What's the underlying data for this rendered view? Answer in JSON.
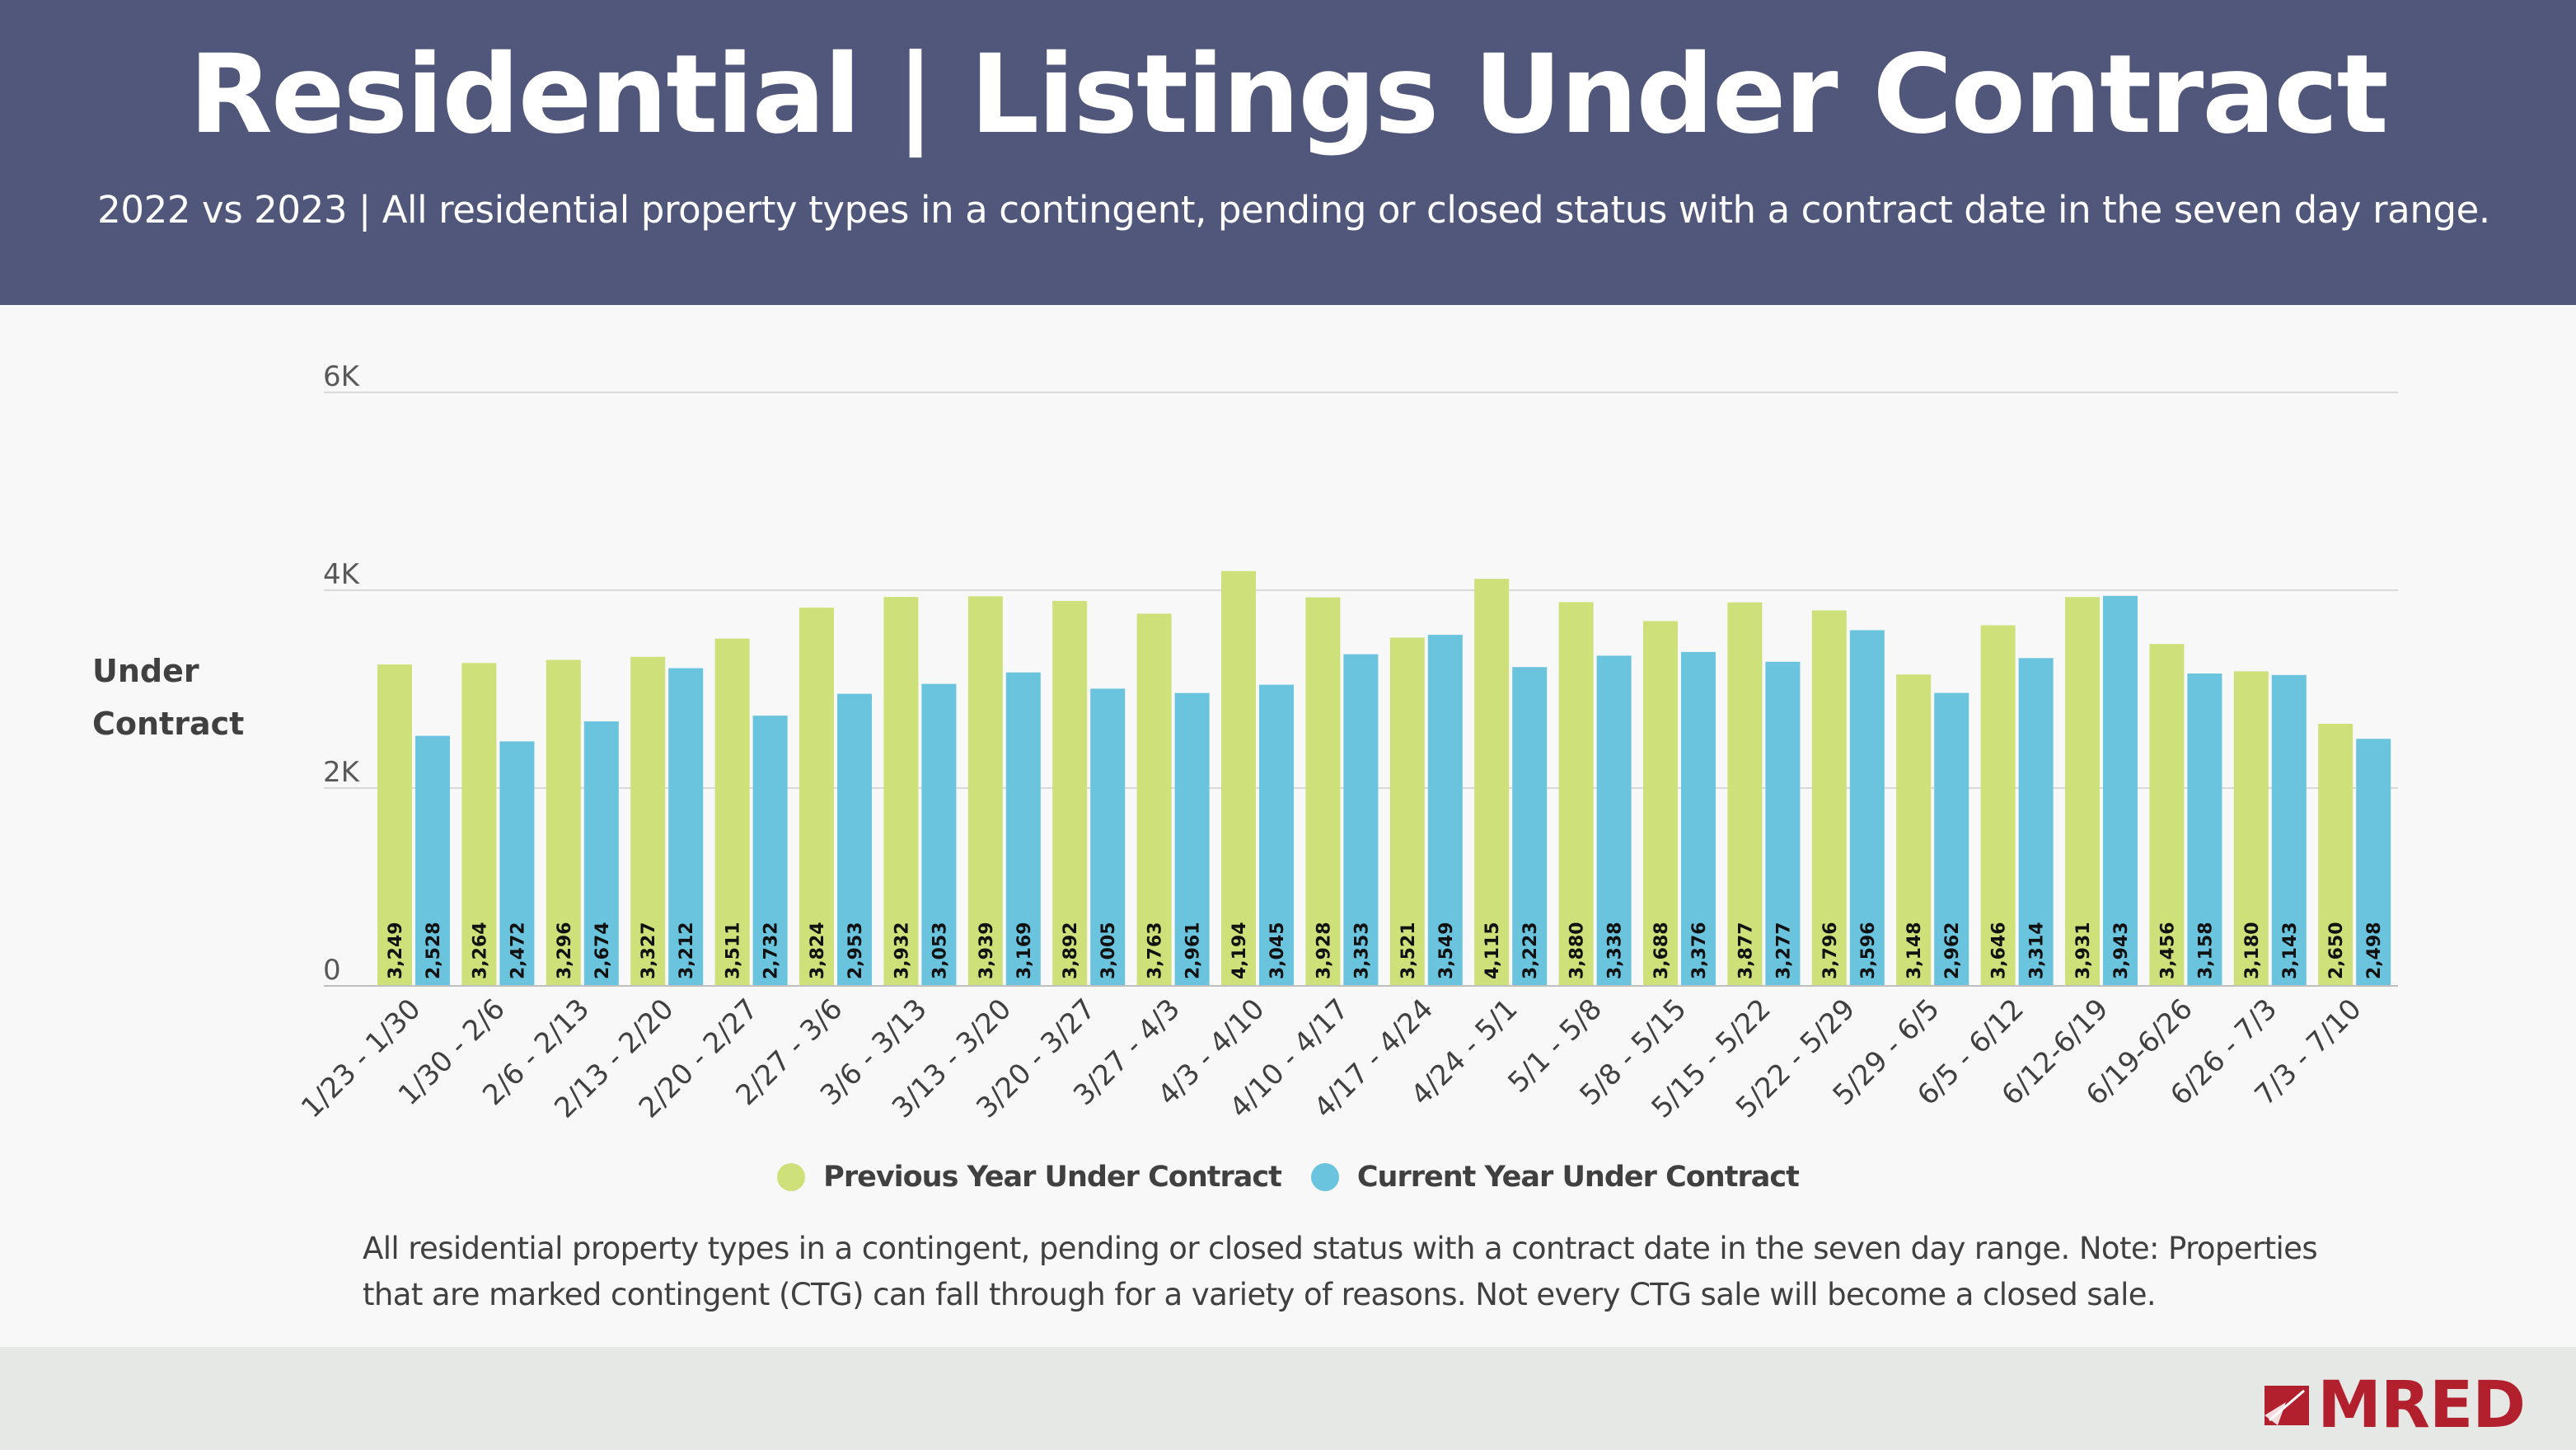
{
  "header": {
    "title": "Residential | Listings Under Contract",
    "subtitle": "2022 vs 2023 | All residential property types in a contingent, pending or closed status with a contract date in the seven day range."
  },
  "chart_data": {
    "type": "bar",
    "ylabel": "Under Contract",
    "ylim": [
      0,
      6000
    ],
    "yticks": [
      "0",
      "2K",
      "4K",
      "6K"
    ],
    "ytick_values": [
      0,
      2000,
      4000,
      6000
    ],
    "grid": true,
    "legend_position": "bottom",
    "categories": [
      "1/23 - 1/30",
      "1/30 - 2/6",
      "2/6 - 2/13",
      "2/13 - 2/20",
      "2/20 - 2/27",
      "2/27 - 3/6",
      "3/6 - 3/13",
      "3/13 - 3/20",
      "3/20 - 3/27",
      "3/27 - 4/3",
      "4/3 - 4/10",
      "4/10 - 4/17",
      "4/17 - 4/24",
      "4/24 - 5/1",
      "5/1 - 5/8",
      "5/8 - 5/15",
      "5/15 - 5/22",
      "5/22 - 5/29",
      "5/29 - 6/5",
      "6/5 - 6/12",
      "6/12-6/19",
      "6/19-6/26",
      "6/26 - 7/3",
      "7/3 - 7/10"
    ],
    "series": [
      {
        "name": "Previous Year Under Contract",
        "color": "#cde07a",
        "values": [
          3249,
          3264,
          3296,
          3327,
          3511,
          3824,
          3932,
          3939,
          3892,
          3763,
          4194,
          3928,
          3521,
          4115,
          3880,
          3688,
          3877,
          3796,
          3148,
          3646,
          3931,
          3456,
          3180,
          2650
        ]
      },
      {
        "name": "Current Year Under Contract",
        "color": "#6ac4de",
        "values": [
          2528,
          2472,
          2674,
          3212,
          2732,
          2953,
          3053,
          3169,
          3005,
          2961,
          3045,
          3353,
          3549,
          3223,
          3338,
          3376,
          3277,
          3596,
          2962,
          3314,
          3943,
          3158,
          3143,
          2498
        ]
      }
    ]
  },
  "footnote": "All residential property types in a contingent, pending or closed status with a contract date in the seven day range. Note: Properties that are marked contingent (CTG) can fall through for a variety of reasons. Not every CTG sale will become a closed sale.",
  "logo": {
    "text": "MRED",
    "color": "#b21f2d"
  }
}
